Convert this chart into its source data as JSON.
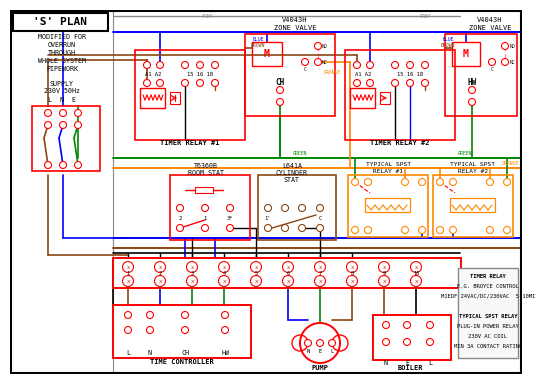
{
  "bg_color": "#ffffff",
  "red": "#ff0000",
  "blue": "#0000ff",
  "green": "#008800",
  "orange": "#ff8800",
  "brown": "#8B4513",
  "gray": "#888888",
  "black": "#000000",
  "pink": "#ff99bb",
  "note_lines": [
    "TIMER RELAY",
    "E.G. BROYCE CONTROL",
    "M1EDF 24VAC/DC/230VAC  5-10MI",
    "",
    "TYPICAL SPST RELAY",
    "PLUG-IN POWER RELAY",
    "230V AC COIL",
    "MIN 3A CONTACT RATING"
  ]
}
